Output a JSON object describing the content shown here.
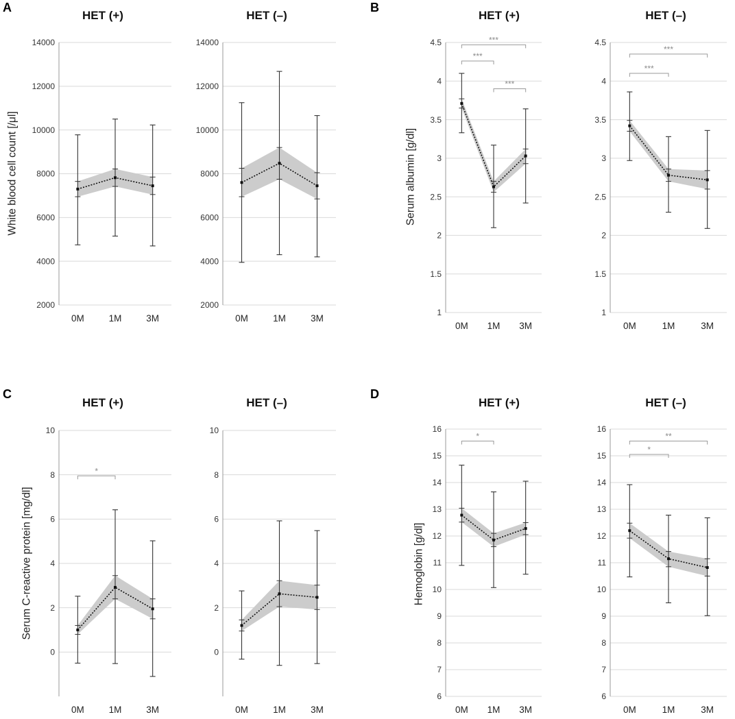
{
  "figure": {
    "panel_letters": [
      "A",
      "B",
      "C",
      "D"
    ]
  },
  "colors": {
    "band": "#cccccc",
    "error_bar": "#333333",
    "mean_line": "#111111",
    "gridline": "#d9d9d9",
    "axis": "#999999",
    "significance": "#9a9a9a"
  },
  "chart_data": [
    {
      "id": "A",
      "type": "line",
      "ylabel": "White blood cell count [/μl]",
      "ylim": [
        2000,
        14000
      ],
      "yticks": [
        2000,
        4000,
        6000,
        8000,
        10000,
        12000,
        14000
      ],
      "categories": [
        "0M",
        "1M",
        "3M"
      ],
      "subplots": [
        {
          "title": "HET (+)",
          "mean": [
            7300,
            7820,
            7450
          ],
          "band_low": [
            6950,
            7420,
            7050
          ],
          "band_high": [
            7650,
            8220,
            7850
          ],
          "err_low": [
            4750,
            5150,
            4700
          ],
          "err_high": [
            9780,
            10500,
            10230
          ],
          "significance": []
        },
        {
          "title": "HET (–)",
          "mean": [
            7600,
            8480,
            7450
          ],
          "band_low": [
            6950,
            7750,
            6850
          ],
          "band_high": [
            8250,
            9200,
            8050
          ],
          "err_low": [
            3950,
            4300,
            4200
          ],
          "err_high": [
            11250,
            12680,
            10660
          ],
          "significance": []
        }
      ]
    },
    {
      "id": "B",
      "type": "line",
      "ylabel": "Serum albumin [g/dl]",
      "ylim": [
        1,
        4.5
      ],
      "yticks": [
        1,
        1.5,
        2,
        2.5,
        3,
        3.5,
        4,
        4.5
      ],
      "categories": [
        "0M",
        "1M",
        "3M"
      ],
      "subplots": [
        {
          "title": "HET (+)",
          "mean": [
            3.71,
            2.63,
            3.03
          ],
          "band_low": [
            3.65,
            2.56,
            2.93
          ],
          "band_high": [
            3.77,
            2.7,
            3.12
          ],
          "err_low": [
            3.33,
            2.1,
            2.42
          ],
          "err_high": [
            4.1,
            3.17,
            3.64
          ],
          "significance": [
            {
              "from": 0,
              "to": 1,
              "level": 4.26,
              "label": "***"
            },
            {
              "from": 0,
              "to": 2,
              "level": 4.47,
              "label": "***"
            },
            {
              "from": 1,
              "to": 2,
              "level": 3.9,
              "label": "***"
            }
          ]
        },
        {
          "title": "HET (–)",
          "mean": [
            3.42,
            2.78,
            2.72
          ],
          "band_low": [
            3.35,
            2.7,
            2.6
          ],
          "band_high": [
            3.49,
            2.86,
            2.84
          ],
          "err_low": [
            2.97,
            2.3,
            2.09
          ],
          "err_high": [
            3.86,
            3.28,
            3.36
          ],
          "significance": [
            {
              "from": 0,
              "to": 1,
              "level": 4.1,
              "label": "***"
            },
            {
              "from": 0,
              "to": 2,
              "level": 4.35,
              "label": "***"
            }
          ]
        }
      ]
    },
    {
      "id": "C",
      "type": "line",
      "ylabel": "Serum C-reactive protein [mg/dl]",
      "ylim": [
        -2,
        10
      ],
      "yticks": [
        0,
        2,
        4,
        6,
        8,
        10
      ],
      "categories": [
        "0M",
        "1M",
        "3M"
      ],
      "subplots": [
        {
          "title": "HET (+)",
          "mean": [
            1.0,
            2.92,
            1.95
          ],
          "band_low": [
            0.8,
            2.4,
            1.5
          ],
          "band_high": [
            1.2,
            3.45,
            2.4
          ],
          "err_low": [
            -0.5,
            -0.52,
            -1.1
          ],
          "err_high": [
            2.52,
            6.42,
            5.02
          ],
          "significance": [
            {
              "from": 0,
              "to": 1,
              "level": 7.95,
              "label": "*"
            }
          ]
        },
        {
          "title": "HET (–)",
          "mean": [
            1.2,
            2.63,
            2.47
          ],
          "band_low": [
            0.95,
            2.05,
            1.92
          ],
          "band_high": [
            1.45,
            3.22,
            3.02
          ],
          "err_low": [
            -0.32,
            -0.6,
            -0.52
          ],
          "err_high": [
            2.76,
            5.92,
            5.48
          ],
          "significance": []
        }
      ]
    },
    {
      "id": "D",
      "type": "line",
      "ylabel": "Hemoglobin [g/dl]",
      "ylim": [
        6,
        16
      ],
      "yticks": [
        6,
        7,
        8,
        9,
        10,
        11,
        12,
        13,
        14,
        15,
        16
      ],
      "categories": [
        "0M",
        "1M",
        "3M"
      ],
      "subplots": [
        {
          "title": "HET (+)",
          "mean": [
            12.78,
            11.85,
            12.28
          ],
          "band_low": [
            12.52,
            11.6,
            12.05
          ],
          "band_high": [
            13.04,
            12.1,
            12.5
          ],
          "err_low": [
            10.9,
            10.07,
            10.57
          ],
          "err_high": [
            14.65,
            13.65,
            14.05
          ],
          "significance": [
            {
              "from": 0,
              "to": 1,
              "level": 15.55,
              "label": "*"
            }
          ]
        },
        {
          "title": "HET (–)",
          "mean": [
            12.2,
            11.15,
            10.82
          ],
          "band_low": [
            11.92,
            10.85,
            10.5
          ],
          "band_high": [
            12.48,
            11.42,
            11.15
          ],
          "err_low": [
            10.47,
            9.5,
            9.02
          ],
          "err_high": [
            13.92,
            12.78,
            12.68
          ],
          "significance": [
            {
              "from": 0,
              "to": 1,
              "level": 15.05,
              "label": "*"
            },
            {
              "from": 0,
              "to": 2,
              "level": 15.55,
              "label": "**"
            }
          ]
        }
      ]
    }
  ]
}
